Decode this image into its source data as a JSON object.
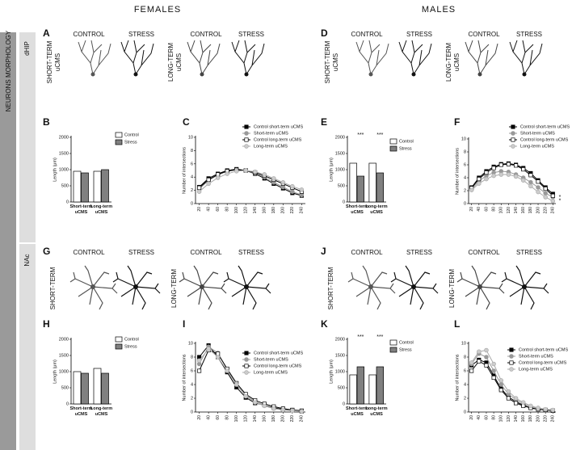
{
  "header": {
    "females": "FEMALES",
    "males": "MALES"
  },
  "sidebar": {
    "main": "NEURONS MORPHOLOGY",
    "region1": "dHIP",
    "region2": "NAc"
  },
  "panels": [
    {
      "label": "A",
      "control": [
        "CONTROL",
        "CONTROL"
      ],
      "stress": [
        "STRESS",
        "STRESS"
      ],
      "short": "SHORT-TERM",
      "short_unit": "uCMS",
      "long": "LONG-TERM",
      "long_unit": "uCMS"
    },
    {
      "label": "D",
      "control": [
        "CONTROL",
        "CONTROL"
      ],
      "stress": [
        "STRESS",
        "STRESS"
      ],
      "short": "SHORT-TERM",
      "short_unit": "uCMS",
      "long": "LONG-TERM",
      "long_unit": "uCMS"
    },
    {
      "label": "G",
      "control": [
        "CONTROL",
        "CONTROL"
      ],
      "stress": [
        "STRESS",
        "STRESS"
      ],
      "short": "SHORT-TERM",
      "long": "LONG-TERM"
    },
    {
      "label": "J",
      "control": [
        "CONTROL",
        "CONTROL"
      ],
      "stress": [
        "STRESS",
        "STRESS"
      ],
      "short": "SHORT-TERM",
      "long": "LONG-TERM"
    }
  ],
  "chart_data": [
    {
      "type": "bar",
      "label": "B",
      "ylabel": "Length (μm)",
      "categories": [
        "Short-term uCMS",
        "Long-term uCMS"
      ],
      "ylim": [
        0,
        2000
      ],
      "yticks": [
        0,
        500,
        1000,
        1500,
        2000
      ],
      "series": [
        {
          "name": "Control",
          "color": "#ffffff",
          "values": [
            950,
            950
          ]
        },
        {
          "name": "Stress",
          "color": "#808080",
          "values": [
            900,
            1000
          ]
        }
      ]
    },
    {
      "type": "line",
      "label": "C",
      "ylabel": "Number of intersections",
      "x": [
        20,
        40,
        60,
        80,
        100,
        120,
        140,
        160,
        180,
        200,
        220,
        240
      ],
      "xlim": [
        12,
        248
      ],
      "xticks": [
        20,
        40,
        60,
        80,
        100,
        120,
        140,
        160,
        180,
        200,
        220,
        240
      ],
      "ylim": [
        0,
        10
      ],
      "yticks": [
        0,
        2,
        4,
        6,
        8,
        10
      ],
      "series": [
        {
          "name": "Control short-term uCMS",
          "color": "#000000",
          "marker": "square",
          "marker_fill": "#000000",
          "values": [
            2.5,
            3.8,
            4.5,
            5,
            5.2,
            5,
            4.5,
            3.8,
            3,
            2.3,
            1.6,
            1.2
          ]
        },
        {
          "name": "Short-term uCMS",
          "color": "#999999",
          "marker": "circle",
          "marker_fill": "#999999",
          "values": [
            2.2,
            3.5,
            4.3,
            4.9,
            5.1,
            5,
            4.6,
            4,
            3.2,
            2.5,
            1.8,
            1.3
          ]
        },
        {
          "name": "Control long-term uCMS",
          "color": "#000000",
          "marker": "square",
          "marker_fill": "#ffffff",
          "values": [
            2.4,
            3.6,
            4.4,
            4.9,
            5.1,
            5,
            4.7,
            4.2,
            3.6,
            3,
            2.4,
            1.8
          ]
        },
        {
          "name": "Long-term uCMS",
          "color": "#aaaaaa",
          "marker": "circle",
          "marker_fill": "#cccccc",
          "values": [
            1.8,
            3,
            3.9,
            4.5,
            4.9,
            5,
            4.8,
            4.4,
            3.8,
            3.2,
            2.6,
            2.1
          ]
        }
      ]
    },
    {
      "type": "bar",
      "label": "E",
      "ylabel": "Length (μm)",
      "categories": [
        "Short-term uCMS",
        "Long-term uCMS"
      ],
      "ylim": [
        0,
        2000
      ],
      "yticks": [
        0,
        500,
        1000,
        1500,
        2000
      ],
      "annotations": [
        "***",
        "***"
      ],
      "series": [
        {
          "name": "Control",
          "color": "#ffffff",
          "values": [
            1200,
            1200
          ]
        },
        {
          "name": "Stress",
          "color": "#808080",
          "values": [
            800,
            900
          ]
        }
      ]
    },
    {
      "type": "line",
      "label": "F",
      "ylabel": "Number of intersections",
      "x": [
        20,
        40,
        60,
        80,
        100,
        120,
        140,
        160,
        180,
        200,
        220,
        240
      ],
      "xlim": [
        12,
        248
      ],
      "xticks": [
        20,
        40,
        60,
        80,
        100,
        120,
        140,
        160,
        180,
        200,
        220,
        240
      ],
      "ylim": [
        0,
        10
      ],
      "yticks": [
        0,
        2,
        4,
        6,
        8,
        10
      ],
      "annotations": [
        "*",
        "*"
      ],
      "series": [
        {
          "name": "Control short-term uCMS",
          "color": "#000000",
          "marker": "square",
          "marker_fill": "#000000",
          "values": [
            2.5,
            4,
            5,
            5.7,
            6.1,
            6.2,
            6,
            5.5,
            4.7,
            3.6,
            2.5,
            1.5
          ]
        },
        {
          "name": "Short-term uCMS",
          "color": "#999999",
          "marker": "circle",
          "marker_fill": "#999999",
          "values": [
            2.2,
            3.5,
            4.3,
            4.8,
            5,
            4.9,
            4.5,
            4,
            3.3,
            2.5,
            1.6,
            1
          ]
        },
        {
          "name": "Control long-term uCMS",
          "color": "#000000",
          "marker": "square",
          "marker_fill": "#ffffff",
          "values": [
            2.4,
            3.8,
            4.8,
            5.5,
            6,
            6.1,
            5.9,
            5.3,
            4.4,
            3.4,
            2.3,
            1.2
          ]
        },
        {
          "name": "Long-term uCMS",
          "color": "#aaaaaa",
          "marker": "circle",
          "marker_fill": "#cccccc",
          "values": [
            2.1,
            3.1,
            3.8,
            4.3,
            4.5,
            4.5,
            4.2,
            3.6,
            2.7,
            1.8,
            1,
            0.4
          ]
        }
      ]
    },
    {
      "type": "bar",
      "label": "H",
      "ylabel": "Length (μm)",
      "categories": [
        "Short-term uCMS",
        "Long-term uCMS"
      ],
      "ylim": [
        0,
        2000
      ],
      "yticks": [
        0,
        500,
        1000,
        1500,
        2000
      ],
      "series": [
        {
          "name": "Control",
          "color": "#ffffff",
          "values": [
            1000,
            1100
          ]
        },
        {
          "name": "Stress",
          "color": "#808080",
          "values": [
            950,
            950
          ]
        }
      ]
    },
    {
      "type": "line",
      "label": "I",
      "ylabel": "Number of intersections",
      "x": [
        20,
        40,
        60,
        80,
        100,
        120,
        140,
        160,
        180,
        200,
        220,
        240
      ],
      "xlim": [
        12,
        248
      ],
      "xticks": [
        20,
        40,
        60,
        80,
        100,
        120,
        140,
        160,
        180,
        200,
        220,
        240
      ],
      "ylim": [
        0,
        10
      ],
      "yticks": [
        0,
        2,
        4,
        6,
        8,
        10
      ],
      "series": [
        {
          "name": "Control short-term uCMS",
          "color": "#000000",
          "marker": "square",
          "marker_fill": "#000000",
          "values": [
            8,
            9.7,
            8,
            5.8,
            3.6,
            2.1,
            1.3,
            1,
            0.6,
            0.4,
            0.3,
            0.1
          ]
        },
        {
          "name": "Short-term uCMS",
          "color": "#999999",
          "marker": "circle",
          "marker_fill": "#999999",
          "values": [
            7,
            9.5,
            8.6,
            6.2,
            4,
            2.4,
            1.5,
            1,
            0.7,
            0.5,
            0.3,
            0.1
          ]
        },
        {
          "name": "Control long-term uCMS",
          "color": "#000000",
          "marker": "square",
          "marker_fill": "#ffffff",
          "values": [
            6,
            9,
            8.5,
            6.3,
            4.2,
            2.6,
            1.7,
            1.2,
            0.8,
            0.5,
            0.3,
            0.2
          ]
        },
        {
          "name": "Long-term uCMS",
          "color": "#aaaaaa",
          "marker": "circle",
          "marker_fill": "#cccccc",
          "values": [
            7.5,
            9.2,
            8,
            6,
            4,
            2.3,
            1.4,
            0.9,
            0.5,
            0.3,
            0.2,
            0.1
          ]
        }
      ]
    },
    {
      "type": "bar",
      "label": "K",
      "ylabel": "Length (μm)",
      "categories": [
        "Short-term uCMS",
        "Long-term uCMS"
      ],
      "ylim": [
        0,
        2000
      ],
      "yticks": [
        0,
        500,
        1000,
        1500,
        2000
      ],
      "annotations": [
        "***",
        "***"
      ],
      "series": [
        {
          "name": "Control",
          "color": "#ffffff",
          "values": [
            900,
            900
          ]
        },
        {
          "name": "Stress",
          "color": "#808080",
          "values": [
            1150,
            1150
          ]
        }
      ]
    },
    {
      "type": "line",
      "label": "L",
      "ylabel": "Number of intersections",
      "x": [
        20,
        40,
        60,
        80,
        100,
        120,
        140,
        160,
        180,
        200,
        220,
        240
      ],
      "xlim": [
        12,
        248
      ],
      "xticks": [
        20,
        40,
        60,
        80,
        100,
        120,
        140,
        160,
        180,
        200,
        220,
        240
      ],
      "ylim": [
        0,
        10
      ],
      "yticks": [
        0,
        2,
        4,
        6,
        8,
        10
      ],
      "series": [
        {
          "name": "Control short-term uCMS",
          "color": "#000000",
          "marker": "square",
          "marker_fill": "#000000",
          "values": [
            6.8,
            7.6,
            7.2,
            5.3,
            3.4,
            2.2,
            1.5,
            1,
            0.6,
            0.4,
            0.3,
            0.2
          ]
        },
        {
          "name": "Short-term uCMS",
          "color": "#999999",
          "marker": "circle",
          "marker_fill": "#999999",
          "values": [
            7,
            8.5,
            8,
            6,
            4,
            2.6,
            1.8,
            1.2,
            0.8,
            0.5,
            0.3,
            0.2
          ]
        },
        {
          "name": "Control long-term uCMS",
          "color": "#000000",
          "marker": "square",
          "marker_fill": "#ffffff",
          "values": [
            6,
            7.4,
            6.8,
            5,
            3.2,
            2,
            1.3,
            0.9,
            0.6,
            0.4,
            0.3,
            0.2
          ]
        },
        {
          "name": "Long-term uCMS",
          "color": "#aaaaaa",
          "marker": "circle",
          "marker_fill": "#cccccc",
          "values": [
            7.2,
            8.8,
            9,
            7,
            4.6,
            3,
            2,
            1.4,
            0.9,
            0.6,
            0.4,
            0.3
          ]
        }
      ]
    }
  ]
}
